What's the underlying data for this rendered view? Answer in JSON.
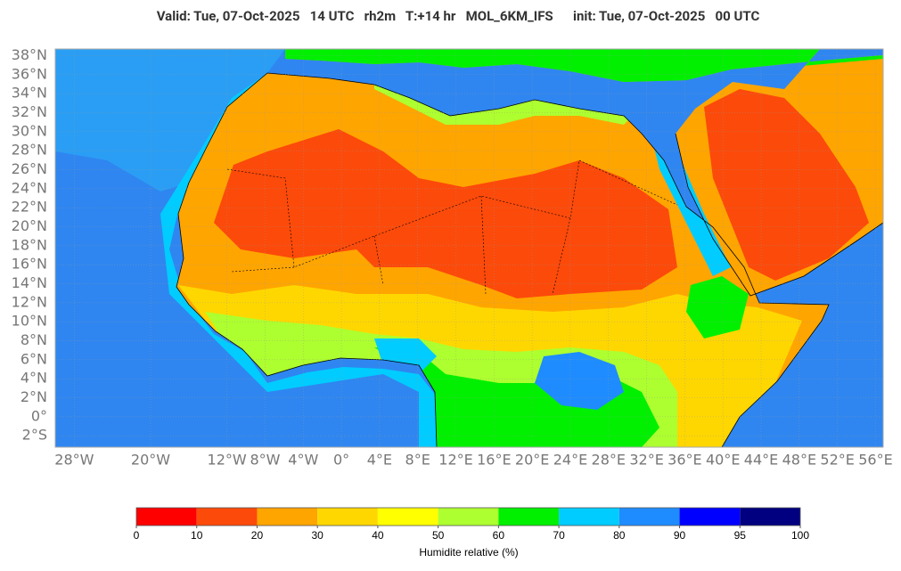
{
  "title": "Valid: Tue, 07-Oct-2025   14 UTC   rh2m   T:+14 hr   MOL_6KM_IFS      init: Tue, 07-Oct-2025   00 UTC",
  "map": {
    "lon_range": [
      -30,
      56.8
    ],
    "lat_range": [
      -3.2,
      38.7
    ],
    "lon_ticks": [
      {
        "value": -28,
        "label": "28°W"
      },
      {
        "value": -20,
        "label": "20°W"
      },
      {
        "value": -12,
        "label": "12°W"
      },
      {
        "value": -8,
        "label": "8°W"
      },
      {
        "value": -4,
        "label": "4°W"
      },
      {
        "value": 0,
        "label": "0°"
      },
      {
        "value": 4,
        "label": "4°E"
      },
      {
        "value": 8,
        "label": "8°E"
      },
      {
        "value": 12,
        "label": "12°E"
      },
      {
        "value": 16,
        "label": "16°E"
      },
      {
        "value": 20,
        "label": "20°E"
      },
      {
        "value": 24,
        "label": "24°E"
      },
      {
        "value": 28,
        "label": "28°E"
      },
      {
        "value": 32,
        "label": "32°E"
      },
      {
        "value": 36,
        "label": "36°E"
      },
      {
        "value": 40,
        "label": "40°E"
      },
      {
        "value": 44,
        "label": "44°E"
      },
      {
        "value": 48,
        "label": "48°E"
      },
      {
        "value": 52,
        "label": "52°E"
      },
      {
        "value": 56,
        "label": "56°E"
      }
    ],
    "lat_ticks": [
      {
        "value": 38,
        "label": "38°N"
      },
      {
        "value": 36,
        "label": "36°N"
      },
      {
        "value": 34,
        "label": "34°N"
      },
      {
        "value": 32,
        "label": "32°N"
      },
      {
        "value": 30,
        "label": "30°N"
      },
      {
        "value": 28,
        "label": "28°N"
      },
      {
        "value": 26,
        "label": "26°N"
      },
      {
        "value": 24,
        "label": "24°N"
      },
      {
        "value": 22,
        "label": "22°N"
      },
      {
        "value": 20,
        "label": "20°N"
      },
      {
        "value": 18,
        "label": "18°N"
      },
      {
        "value": 16,
        "label": "16°N"
      },
      {
        "value": 14,
        "label": "14°N"
      },
      {
        "value": 12,
        "label": "12°N"
      },
      {
        "value": 10,
        "label": "10°N"
      },
      {
        "value": 8,
        "label": "8°N"
      },
      {
        "value": 6,
        "label": "6°N"
      },
      {
        "value": 4,
        "label": "4°N"
      },
      {
        "value": 2,
        "label": "2°N"
      },
      {
        "value": 0,
        "label": "0°"
      },
      {
        "value": -2,
        "label": "2°S"
      }
    ]
  },
  "colorbar": {
    "label": "Humidite relative (%)",
    "ticks": [
      0,
      10,
      20,
      30,
      40,
      50,
      60,
      70,
      80,
      90,
      95,
      100
    ],
    "colors": [
      "#ff0000",
      "#fc4a0a",
      "#ffa500",
      "#ffd700",
      "#ffff00",
      "#adff2f",
      "#00f000",
      "#00ccff",
      "#1e8cff",
      "#0000ff",
      "#000080"
    ]
  }
}
